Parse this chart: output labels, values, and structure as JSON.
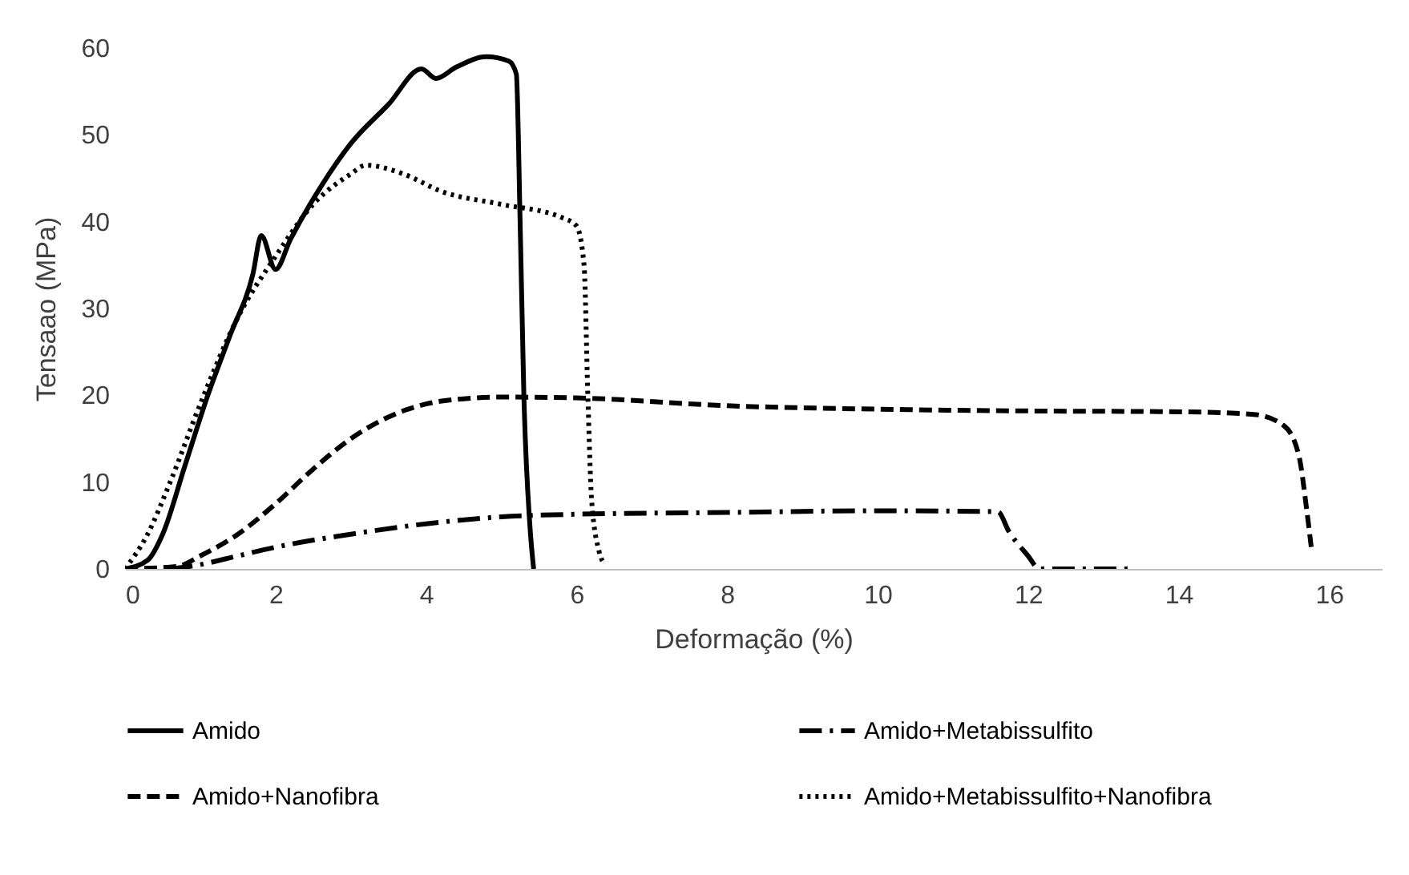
{
  "chart_data": {
    "type": "line",
    "xlabel": "Deformação (%)",
    "ylabel": "Tensaao (MPa)",
    "xlim": [
      0,
      16.7
    ],
    "xticks": [
      0,
      2,
      4,
      6,
      8,
      10,
      12,
      14,
      16
    ],
    "ylim": [
      0,
      60
    ],
    "yticks": [
      0,
      10,
      20,
      30,
      40,
      50,
      60
    ],
    "grid": false,
    "legend": "bottom",
    "marker": "none",
    "series": [
      {
        "name": "Amido",
        "color": "#000000",
        "line_style": "solid",
        "x": [
          0,
          0.3,
          0.5,
          0.8,
          1.1,
          1.4,
          1.7,
          1.81,
          2.0,
          2.2,
          2.6,
          3.0,
          3.5,
          3.94,
          4.13,
          4.4,
          4.8,
          5.1,
          5.2,
          5.25,
          5.3,
          5.38,
          5.43
        ],
        "values": [
          0,
          1,
          4,
          12,
          20,
          27,
          34,
          38.4,
          34.5,
          38,
          44,
          49,
          53.5,
          57.6,
          56.5,
          57.8,
          59,
          58.5,
          57,
          40,
          20,
          5,
          0
        ]
      },
      {
        "name": "Amido+Metabissulfito",
        "color": "#000000",
        "line_style": "dashdot",
        "x": [
          0.6,
          1.0,
          1.5,
          2.0,
          3.0,
          4.0,
          5.0,
          6.0,
          8.0,
          10.0,
          11.6,
          11.74,
          12.0,
          12.15,
          13.4
        ],
        "values": [
          0,
          0.5,
          1.5,
          2.5,
          4,
          5.2,
          6,
          6.3,
          6.5,
          6.7,
          6.6,
          4.4,
          1.5,
          0,
          0
        ]
      },
      {
        "name": "Amido+Nanofibra",
        "color": "#000000",
        "line_style": "dashed",
        "x": [
          0,
          0.7,
          1.0,
          1.5,
          2.0,
          2.5,
          3.0,
          3.5,
          4.0,
          4.5,
          5.0,
          6.0,
          8.0,
          10.0,
          12.0,
          14.0,
          15.0,
          15.4,
          15.6,
          15.7,
          15.77
        ],
        "values": [
          0,
          0.3,
          1.5,
          4,
          7.5,
          11.5,
          15,
          17.5,
          19,
          19.6,
          19.8,
          19.7,
          18.8,
          18.4,
          18.2,
          18.1,
          17.8,
          16.5,
          13,
          7,
          2
        ]
      },
      {
        "name": "Amido+Metabissulfito+Nanofibra",
        "color": "#000000",
        "line_style": "dotted",
        "x": [
          0,
          0.3,
          0.6,
          1.0,
          1.5,
          2.0,
          2.5,
          3.0,
          3.2,
          3.7,
          4.2,
          5.0,
          5.8,
          6.0,
          6.1,
          6.15,
          6.2,
          6.3,
          6.38
        ],
        "values": [
          0,
          4,
          10,
          19,
          29,
          36,
          42,
          45.5,
          46.5,
          45.5,
          43.5,
          42,
          40.5,
          39.5,
          35,
          20,
          8,
          2,
          0.5
        ]
      }
    ]
  }
}
